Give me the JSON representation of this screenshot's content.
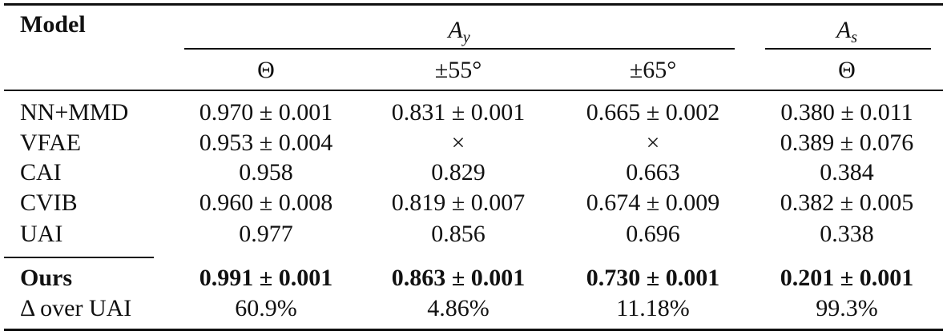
{
  "table": {
    "header": {
      "model": "Model",
      "groups": [
        {
          "base": "A",
          "sub": "y"
        },
        {
          "base": "A",
          "sub": "s"
        }
      ],
      "subheaders": [
        "Θ",
        "±55°",
        "±65°",
        "Θ"
      ]
    },
    "rows": [
      [
        "NN+MMD",
        "0.970 ± 0.001",
        "0.831 ± 0.001",
        "0.665 ± 0.002",
        "0.380 ± 0.011"
      ],
      [
        "VFAE",
        "0.953 ± 0.004",
        "×",
        "×",
        "0.389 ± 0.076"
      ],
      [
        "CAI",
        "0.958",
        "0.829",
        "0.663",
        "0.384"
      ],
      [
        "CVIB",
        "0.960 ± 0.008",
        "0.819 ± 0.007",
        "0.674 ± 0.009",
        "0.382 ± 0.005"
      ],
      [
        "UAI",
        "0.977",
        "0.856",
        "0.696",
        "0.338"
      ]
    ],
    "ours": [
      "Ours",
      "0.991 ± 0.001",
      "0.863 ± 0.001",
      "0.730 ± 0.001",
      "0.201 ± 0.001"
    ],
    "delta": [
      "Δ over UAI",
      "60.9%",
      "4.86%",
      "11.18%",
      "99.3%"
    ]
  }
}
